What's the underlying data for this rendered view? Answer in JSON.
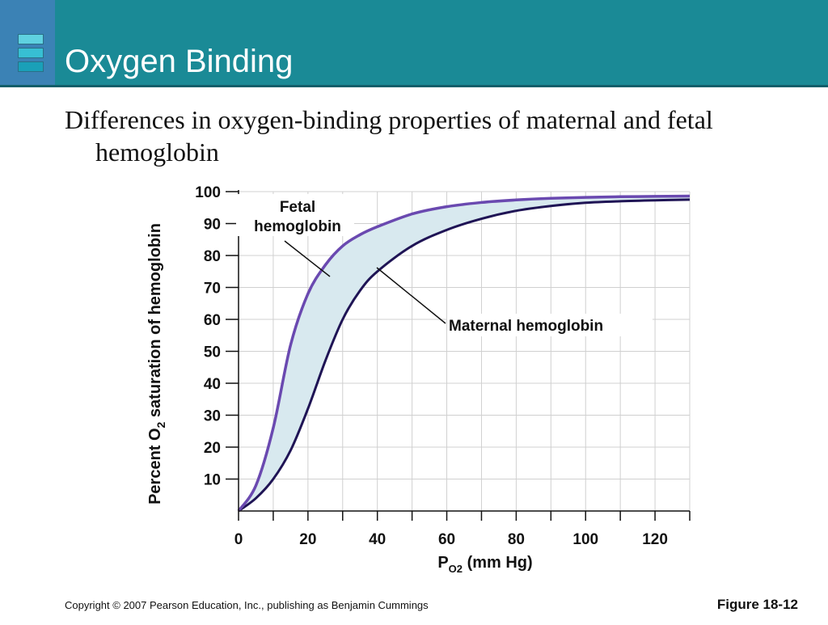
{
  "slide": {
    "title": "Oxygen Binding",
    "subtitle": "Differences in oxygen-binding properties of maternal and fetal hemoglobin",
    "footer_left": "Copyright © 2007 Pearson Education, Inc., publishing as Benjamin Cummings",
    "footer_right": "Figure 18-12"
  },
  "colors": {
    "title_bar": "#1a8a96",
    "title_accent": "#3b82b5",
    "fetal_curve": "#6a49b0",
    "maternal_curve": "#1f1455",
    "fill_between": "#d8e9ef",
    "grid": "#d0d0d0"
  },
  "chart_data": {
    "type": "line",
    "title": "",
    "xlabel": "P",
    "xlabel_subscript": "O2",
    "xlabel_unit": "(mm Hg)",
    "ylabel_main": "Percent O",
    "ylabel_subscript": "2",
    "ylabel_rest": "saturation of hemoglobin",
    "xlim": [
      0,
      130
    ],
    "ylim": [
      0,
      100
    ],
    "x_ticks": [
      0,
      20,
      40,
      60,
      80,
      100,
      120
    ],
    "y_ticks": [
      10,
      20,
      30,
      40,
      50,
      60,
      70,
      80,
      90,
      100
    ],
    "grid": true,
    "fill_between_series": true,
    "series": [
      {
        "name": "Fetal hemoglobin",
        "x": [
          0,
          5,
          10,
          15,
          20,
          25,
          30,
          35,
          40,
          50,
          60,
          70,
          80,
          90,
          100,
          110,
          120,
          130
        ],
        "y": [
          0,
          8,
          26,
          52,
          68,
          77,
          83,
          86.5,
          89,
          93,
          95.3,
          96.6,
          97.4,
          97.9,
          98.2,
          98.4,
          98.5,
          98.6
        ]
      },
      {
        "name": "Maternal hemoglobin",
        "x": [
          0,
          5,
          10,
          15,
          20,
          25,
          30,
          35,
          40,
          50,
          60,
          70,
          80,
          90,
          100,
          110,
          120,
          130
        ],
        "y": [
          0,
          4,
          10,
          19,
          32,
          47,
          60,
          69,
          75,
          83,
          88,
          91.5,
          94,
          95.5,
          96.5,
          97,
          97.3,
          97.5
        ]
      }
    ],
    "annotations": [
      {
        "text_line1": "Fetal",
        "text_line2": "hemoglobin",
        "points_to": "Fetal hemoglobin"
      },
      {
        "text_line1": "Maternal hemoglobin",
        "points_to": "Maternal hemoglobin"
      }
    ]
  }
}
